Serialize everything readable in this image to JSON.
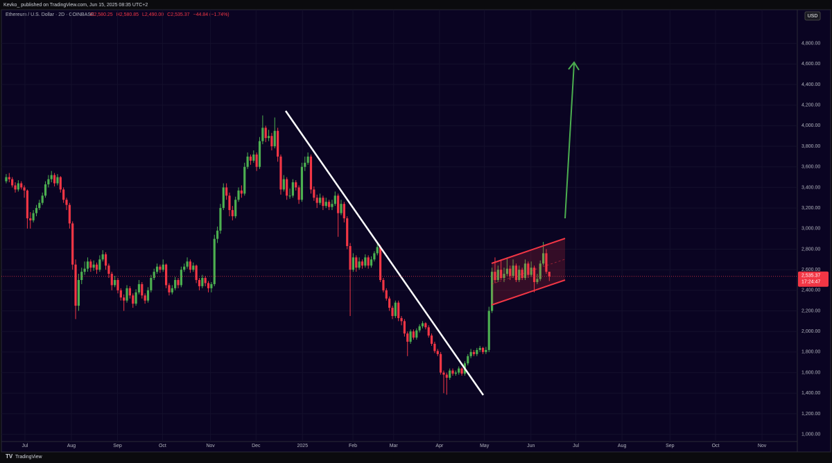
{
  "header": "Kevko_ published on TradingView.com, Jun 15, 2025 08:35 UTC+2",
  "footer": "TradingView",
  "chart_data": {
    "type": "candlestick",
    "legend_label": "Ethereum / U.S. Dollar · 2D · COINBASE",
    "legend_values": [
      "O2,580.25",
      "H2,580.85",
      "L2,490.00",
      "C2,535.37",
      "−44.84 (−1.74%)"
    ],
    "currency": "USD",
    "last_price": {
      "value": 2535.37,
      "label": "2,535.37"
    },
    "countdown": "17:24:47",
    "up_color": "#4caf50",
    "down_color": "#f23645",
    "grid": true,
    "xlim": [
      -1.6,
      262.2
    ],
    "xticks": [
      {
        "value": 6.2,
        "label": "Jul"
      },
      {
        "value": 21.6,
        "label": "Aug"
      },
      {
        "value": 36.9,
        "label": "Sep"
      },
      {
        "value": 51.8,
        "label": "Oct"
      },
      {
        "value": 67.7,
        "label": "Nov"
      },
      {
        "value": 82.8,
        "label": "Dec"
      },
      {
        "value": 98.2,
        "label": "2025"
      },
      {
        "value": 114.9,
        "label": "Feb"
      },
      {
        "value": 128.4,
        "label": "Mar"
      },
      {
        "value": 143.6,
        "label": "Apr"
      },
      {
        "value": 158.5,
        "label": "May"
      },
      {
        "value": 173.9,
        "label": "Jun"
      },
      {
        "value": 188.8,
        "label": "Jul"
      },
      {
        "value": 204.1,
        "label": "Aug"
      },
      {
        "value": 220,
        "label": "Sep"
      },
      {
        "value": 235.1,
        "label": "Oct"
      },
      {
        "value": 250.5,
        "label": "Nov"
      }
    ],
    "ylim": [
      930,
      5020
    ],
    "yticks": [
      {
        "value": 1000,
        "label": "1,000.00"
      },
      {
        "value": 1200,
        "label": "1,200.00"
      },
      {
        "value": 1400,
        "label": "1,400.00"
      },
      {
        "value": 1600,
        "label": "1,600.00"
      },
      {
        "value": 1800,
        "label": "1,800.00"
      },
      {
        "value": 2000,
        "label": "2,000.00"
      },
      {
        "value": 2200,
        "label": "2,200.00"
      },
      {
        "value": 2400,
        "label": "2,400.00"
      },
      {
        "value": 2600,
        "label": "2,600.00"
      },
      {
        "value": 2800,
        "label": "2,800.00"
      },
      {
        "value": 3000,
        "label": "3,000.00"
      },
      {
        "value": 3200,
        "label": "3,200.00"
      },
      {
        "value": 3400,
        "label": "3,400.00"
      },
      {
        "value": 3600,
        "label": "3,600.00"
      },
      {
        "value": 3800,
        "label": "3,800.00"
      },
      {
        "value": 4000,
        "label": "4,000.00"
      },
      {
        "value": 4200,
        "label": "4,200.00"
      },
      {
        "value": 4400,
        "label": "4,400.00"
      },
      {
        "value": 4600,
        "label": "4,600.00"
      },
      {
        "value": 4800,
        "label": "4,800.00"
      }
    ],
    "ohlc": [
      [
        3460,
        3530,
        3440,
        3500
      ],
      [
        3500,
        3540,
        3450,
        3480
      ],
      [
        3480,
        3500,
        3400,
        3420
      ],
      [
        3420,
        3450,
        3350,
        3380
      ],
      [
        3380,
        3470,
        3360,
        3440
      ],
      [
        3440,
        3460,
        3380,
        3400
      ],
      [
        3400,
        3420,
        3300,
        3370
      ],
      [
        3370,
        3380,
        3000,
        3100
      ],
      [
        3100,
        3160,
        3000,
        3080
      ],
      [
        3080,
        3180,
        3060,
        3150
      ],
      [
        3150,
        3230,
        3120,
        3200
      ],
      [
        3200,
        3280,
        3180,
        3250
      ],
      [
        3250,
        3350,
        3230,
        3320
      ],
      [
        3320,
        3460,
        3300,
        3430
      ],
      [
        3430,
        3520,
        3400,
        3480
      ],
      [
        3480,
        3560,
        3450,
        3520
      ],
      [
        3520,
        3540,
        3410,
        3440
      ],
      [
        3440,
        3530,
        3420,
        3500
      ],
      [
        3500,
        3510,
        3350,
        3380
      ],
      [
        3380,
        3400,
        3250,
        3280
      ],
      [
        3280,
        3300,
        3180,
        3230
      ],
      [
        3230,
        3250,
        3000,
        3050
      ],
      [
        3050,
        3070,
        2600,
        2650
      ],
      [
        2650,
        2700,
        2120,
        2250
      ],
      [
        2250,
        2560,
        2200,
        2500
      ],
      [
        2500,
        2620,
        2460,
        2580
      ],
      [
        2580,
        2680,
        2550,
        2610
      ],
      [
        2610,
        2720,
        2580,
        2680
      ],
      [
        2680,
        2700,
        2580,
        2620
      ],
      [
        2620,
        2690,
        2590,
        2650
      ],
      [
        2650,
        2670,
        2560,
        2600
      ],
      [
        2600,
        2740,
        2580,
        2700
      ],
      [
        2700,
        2790,
        2680,
        2750
      ],
      [
        2750,
        2770,
        2600,
        2640
      ],
      [
        2640,
        2660,
        2520,
        2560
      ],
      [
        2560,
        2580,
        2400,
        2450
      ],
      [
        2450,
        2540,
        2430,
        2500
      ],
      [
        2500,
        2520,
        2370,
        2400
      ],
      [
        2400,
        2420,
        2300,
        2330
      ],
      [
        2330,
        2360,
        2200,
        2300
      ],
      [
        2300,
        2450,
        2280,
        2420
      ],
      [
        2420,
        2440,
        2320,
        2350
      ],
      [
        2350,
        2370,
        2230,
        2270
      ],
      [
        2270,
        2410,
        2250,
        2380
      ],
      [
        2380,
        2500,
        2360,
        2460
      ],
      [
        2460,
        2480,
        2320,
        2350
      ],
      [
        2350,
        2370,
        2270,
        2300
      ],
      [
        2300,
        2430,
        2280,
        2400
      ],
      [
        2400,
        2550,
        2380,
        2520
      ],
      [
        2520,
        2610,
        2500,
        2580
      ],
      [
        2580,
        2660,
        2560,
        2630
      ],
      [
        2630,
        2650,
        2570,
        2600
      ],
      [
        2600,
        2700,
        2580,
        2650
      ],
      [
        2650,
        2660,
        2420,
        2450
      ],
      [
        2450,
        2470,
        2350,
        2380
      ],
      [
        2380,
        2450,
        2360,
        2420
      ],
      [
        2420,
        2530,
        2400,
        2500
      ],
      [
        2500,
        2520,
        2420,
        2450
      ],
      [
        2450,
        2630,
        2430,
        2600
      ],
      [
        2600,
        2660,
        2580,
        2630
      ],
      [
        2630,
        2720,
        2610,
        2680
      ],
      [
        2680,
        2700,
        2570,
        2600
      ],
      [
        2600,
        2670,
        2580,
        2640
      ],
      [
        2640,
        2650,
        2470,
        2500
      ],
      [
        2500,
        2520,
        2400,
        2440
      ],
      [
        2440,
        2550,
        2420,
        2520
      ],
      [
        2520,
        2540,
        2440,
        2470
      ],
      [
        2470,
        2490,
        2380,
        2420
      ],
      [
        2420,
        2480,
        2380,
        2460
      ],
      [
        2460,
        2940,
        2440,
        2900
      ],
      [
        2900,
        3020,
        2860,
        2980
      ],
      [
        2980,
        3240,
        2950,
        3200
      ],
      [
        3200,
        3440,
        3180,
        3400
      ],
      [
        3400,
        3440,
        3280,
        3320
      ],
      [
        3320,
        3350,
        3120,
        3180
      ],
      [
        3180,
        3220,
        3080,
        3120
      ],
      [
        3120,
        3310,
        3100,
        3280
      ],
      [
        3280,
        3400,
        3260,
        3370
      ],
      [
        3370,
        3420,
        3300,
        3340
      ],
      [
        3340,
        3640,
        3320,
        3600
      ],
      [
        3600,
        3740,
        3580,
        3700
      ],
      [
        3700,
        3720,
        3620,
        3660
      ],
      [
        3660,
        3760,
        3640,
        3720
      ],
      [
        3720,
        3740,
        3560,
        3600
      ],
      [
        3600,
        3890,
        3580,
        3850
      ],
      [
        3850,
        4100,
        3820,
        3980
      ],
      [
        3980,
        4000,
        3840,
        3880
      ],
      [
        3880,
        3960,
        3850,
        3900
      ],
      [
        3900,
        3930,
        3760,
        3800
      ],
      [
        3800,
        4080,
        3780,
        3950
      ],
      [
        3950,
        3980,
        3650,
        3700
      ],
      [
        3700,
        3720,
        3330,
        3380
      ],
      [
        3380,
        3520,
        3360,
        3480
      ],
      [
        3480,
        3500,
        3280,
        3320
      ],
      [
        3320,
        3390,
        3290,
        3320
      ],
      [
        3320,
        3480,
        3300,
        3450
      ],
      [
        3450,
        3470,
        3370,
        3400
      ],
      [
        3400,
        3420,
        3240,
        3280
      ],
      [
        3280,
        3640,
        3260,
        3600
      ],
      [
        3600,
        3700,
        3560,
        3640
      ],
      [
        3640,
        3740,
        3620,
        3700
      ],
      [
        3700,
        3720,
        3340,
        3380
      ],
      [
        3380,
        3410,
        3270,
        3300
      ],
      [
        3300,
        3330,
        3200,
        3250
      ],
      [
        3250,
        3340,
        3230,
        3300
      ],
      [
        3300,
        3320,
        3180,
        3220
      ],
      [
        3220,
        3300,
        3200,
        3260
      ],
      [
        3260,
        3280,
        3180,
        3210
      ],
      [
        3210,
        3280,
        3180,
        3240
      ],
      [
        3240,
        3360,
        3220,
        3320
      ],
      [
        3320,
        3340,
        2920,
        3150
      ],
      [
        3150,
        3280,
        3130,
        3240
      ],
      [
        3240,
        3260,
        3060,
        3100
      ],
      [
        3100,
        3120,
        2800,
        2830
      ],
      [
        2830,
        2860,
        2150,
        2600
      ],
      [
        2600,
        2760,
        2580,
        2720
      ],
      [
        2720,
        2740,
        2580,
        2620
      ],
      [
        2620,
        2720,
        2600,
        2680
      ],
      [
        2680,
        2700,
        2610,
        2640
      ],
      [
        2640,
        2750,
        2620,
        2720
      ],
      [
        2720,
        2740,
        2610,
        2640
      ],
      [
        2640,
        2730,
        2620,
        2700
      ],
      [
        2700,
        2780,
        2680,
        2760
      ],
      [
        2760,
        2850,
        2740,
        2820
      ],
      [
        2820,
        2840,
        2480,
        2500
      ],
      [
        2500,
        2520,
        2380,
        2400
      ],
      [
        2400,
        2420,
        2300,
        2320
      ],
      [
        2320,
        2340,
        2200,
        2230
      ],
      [
        2230,
        2250,
        2120,
        2150
      ],
      [
        2150,
        2300,
        2130,
        2280
      ],
      [
        2280,
        2300,
        2100,
        2130
      ],
      [
        2130,
        2150,
        2060,
        2100
      ],
      [
        2100,
        2120,
        1950,
        1980
      ],
      [
        1980,
        2000,
        1760,
        1900
      ],
      [
        1900,
        2020,
        1880,
        2000
      ],
      [
        2000,
        2020,
        1920,
        1940
      ],
      [
        1940,
        2030,
        1920,
        2010
      ],
      [
        2010,
        2070,
        1990,
        2050
      ],
      [
        2050,
        2100,
        2030,
        2080
      ],
      [
        2080,
        2090,
        2020,
        2040
      ],
      [
        2040,
        2060,
        1940,
        1960
      ],
      [
        1960,
        1980,
        1860,
        1880
      ],
      [
        1880,
        1900,
        1790,
        1810
      ],
      [
        1810,
        1830,
        1760,
        1780
      ],
      [
        1780,
        1800,
        1580,
        1600
      ],
      [
        1600,
        1620,
        1400,
        1580
      ],
      [
        1580,
        1600,
        1385,
        1550
      ],
      [
        1550,
        1640,
        1530,
        1620
      ],
      [
        1620,
        1640,
        1570,
        1590
      ],
      [
        1590,
        1620,
        1570,
        1600
      ],
      [
        1600,
        1660,
        1580,
        1640
      ],
      [
        1640,
        1650,
        1570,
        1590
      ],
      [
        1590,
        1710,
        1570,
        1690
      ],
      [
        1690,
        1780,
        1670,
        1760
      ],
      [
        1760,
        1830,
        1740,
        1800
      ],
      [
        1800,
        1820,
        1760,
        1780
      ],
      [
        1780,
        1840,
        1760,
        1820
      ],
      [
        1820,
        1860,
        1800,
        1840
      ],
      [
        1840,
        1850,
        1780,
        1800
      ],
      [
        1800,
        1850,
        1780,
        1820
      ],
      [
        1820,
        2240,
        1800,
        2200
      ],
      [
        2200,
        2620,
        2180,
        2580
      ],
      [
        2580,
        2720,
        2470,
        2500
      ],
      [
        2500,
        2640,
        2480,
        2600
      ],
      [
        2600,
        2700,
        2500,
        2520
      ],
      [
        2520,
        2620,
        2480,
        2560
      ],
      [
        2560,
        2720,
        2540,
        2610
      ],
      [
        2610,
        2640,
        2500,
        2540
      ],
      [
        2540,
        2700,
        2520,
        2640
      ],
      [
        2640,
        2660,
        2480,
        2500
      ],
      [
        2500,
        2640,
        2480,
        2600
      ],
      [
        2600,
        2620,
        2500,
        2520
      ],
      [
        2520,
        2700,
        2500,
        2660
      ],
      [
        2660,
        2680,
        2520,
        2550
      ],
      [
        2550,
        2680,
        2530,
        2620
      ],
      [
        2620,
        2640,
        2380,
        2480
      ],
      [
        2480,
        2560,
        2460,
        2510
      ],
      [
        2510,
        2690,
        2490,
        2660
      ],
      [
        2660,
        2870,
        2640,
        2760
      ],
      [
        2760,
        2800,
        2560,
        2580
      ],
      [
        2580.25,
        2580.85,
        2490,
        2535.37
      ]
    ]
  }
}
